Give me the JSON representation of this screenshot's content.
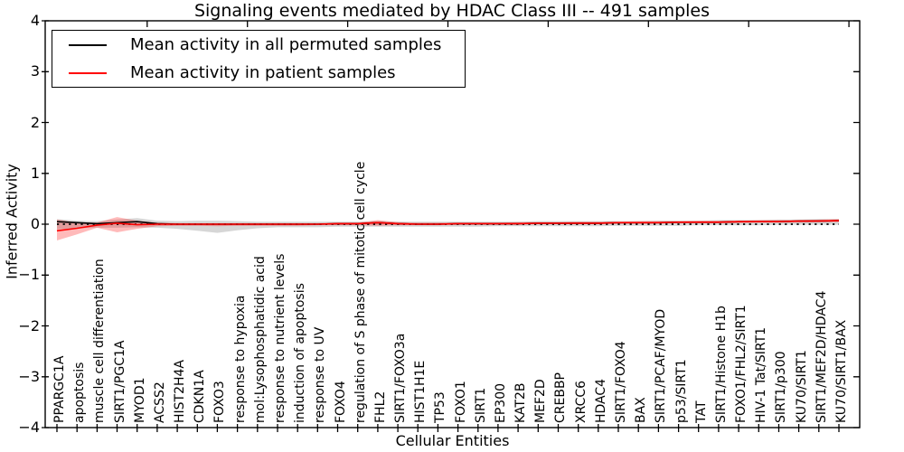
{
  "chart_data": {
    "type": "line",
    "title": "Signaling events mediated by HDAC Class III -- 491 samples",
    "xlabel": "Cellular Entities",
    "ylabel": "Inferred Activity",
    "ylim": [
      -4,
      4
    ],
    "ytick_labels": [
      "4",
      "3",
      "2",
      "1",
      "0",
      "−1",
      "−2",
      "−3",
      "−4"
    ],
    "ytick_values": [
      4,
      3,
      2,
      1,
      0,
      -1,
      -2,
      -3,
      -4
    ],
    "grid": false,
    "zero_reference_line": {
      "style": "dotted",
      "color": "#000000",
      "y": 0
    },
    "legend_position": "upper left",
    "categories": [
      "PPARGC1A",
      "apoptosis",
      "muscle cell differentiation",
      "SIRT1/PGC1A",
      "MYOD1",
      "ACSS2",
      "HIST2H4A",
      "CDKN1A",
      "FOXO3",
      "response to hypoxia",
      "mol:Lysophosphatidic acid",
      "response to nutrient levels",
      "induction of apoptosis",
      "response to UV",
      "FOXO4",
      "regulation of S phase of mitotic cell cycle",
      "FHL2",
      "SIRT1/FOXO3a",
      "HIST1H1E",
      "TP53",
      "FOXO1",
      "SIRT1",
      "EP300",
      "KAT2B",
      "MEF2D",
      "CREBBP",
      "XRCC6",
      "HDAC4",
      "SIRT1/FOXO4",
      "BAX",
      "SIRT1/PCAF/MYOD",
      "p53/SIRT1",
      "TAT",
      "SIRT1/Histone H1b",
      "FOXO1/FHL2/SIRT1",
      "HIV-1 Tat/SIRT1",
      "SIRT1/p300",
      "KU70/SIRT1",
      "SIRT1/MEF2D/HDAC4",
      "KU70/SIRT1/BAX"
    ],
    "series": [
      {
        "name": "Mean activity in all permuted samples",
        "color": "#000000",
        "band_color": "rgba(0,0,0,0.16)",
        "values": [
          0.05,
          0.03,
          0.01,
          0.03,
          0.05,
          0.01,
          0.0,
          0.0,
          0.0,
          0.0,
          0.0,
          0.0,
          0.0,
          0.0,
          0.01,
          0.01,
          0.03,
          0.01,
          0.0,
          0.0,
          0.01,
          0.01,
          0.01,
          0.01,
          0.02,
          0.02,
          0.02,
          0.02,
          0.03,
          0.03,
          0.03,
          0.04,
          0.04,
          0.04,
          0.05,
          0.05,
          0.05,
          0.06,
          0.06,
          0.07
        ],
        "band_upper": [
          0.1,
          0.07,
          0.06,
          0.09,
          0.12,
          0.07,
          0.06,
          0.07,
          0.07,
          0.06,
          0.05,
          0.05,
          0.05,
          0.05,
          0.05,
          0.05,
          0.06,
          0.05,
          0.05,
          0.05,
          0.05,
          0.05,
          0.05,
          0.05,
          0.06,
          0.06,
          0.06,
          0.06,
          0.06,
          0.06,
          0.07,
          0.07,
          0.07,
          0.08,
          0.08,
          0.08,
          0.09,
          0.09,
          0.1,
          0.1
        ],
        "band_lower": [
          -0.1,
          -0.08,
          -0.07,
          -0.07,
          -0.06,
          -0.07,
          -0.09,
          -0.13,
          -0.17,
          -0.12,
          -0.08,
          -0.06,
          -0.06,
          -0.06,
          -0.05,
          -0.05,
          -0.05,
          -0.05,
          -0.05,
          -0.05,
          -0.05,
          -0.05,
          -0.04,
          -0.04,
          -0.04,
          -0.04,
          -0.04,
          -0.04,
          -0.03,
          -0.03,
          -0.03,
          -0.03,
          -0.02,
          -0.02,
          -0.02,
          -0.02,
          -0.01,
          -0.01,
          -0.01,
          -0.01
        ]
      },
      {
        "name": "Mean activity in patient samples",
        "color": "#ff0000",
        "band_color": "rgba(255,0,0,0.27)",
        "values": [
          -0.13,
          -0.08,
          -0.02,
          0.02,
          -0.01,
          0.0,
          0.0,
          0.0,
          0.0,
          0.0,
          0.0,
          0.0,
          0.0,
          0.0,
          0.01,
          0.01,
          0.03,
          0.01,
          0.0,
          0.0,
          0.01,
          0.01,
          0.01,
          0.01,
          0.02,
          0.02,
          0.02,
          0.02,
          0.03,
          0.03,
          0.03,
          0.04,
          0.04,
          0.04,
          0.05,
          0.05,
          0.05,
          0.06,
          0.06,
          0.07
        ],
        "band_upper": [
          0.09,
          0.03,
          0.03,
          0.14,
          0.07,
          0.03,
          0.02,
          0.02,
          0.02,
          0.02,
          0.02,
          0.02,
          0.02,
          0.02,
          0.03,
          0.03,
          0.08,
          0.04,
          0.03,
          0.03,
          0.03,
          0.03,
          0.03,
          0.04,
          0.04,
          0.04,
          0.05,
          0.05,
          0.05,
          0.06,
          0.06,
          0.06,
          0.07,
          0.07,
          0.07,
          0.08,
          0.08,
          0.08,
          0.09,
          0.1
        ],
        "band_lower": [
          -0.32,
          -0.2,
          -0.07,
          -0.16,
          -0.09,
          -0.04,
          -0.03,
          -0.03,
          -0.04,
          -0.03,
          -0.03,
          -0.03,
          -0.03,
          -0.02,
          -0.02,
          -0.02,
          -0.03,
          -0.02,
          -0.02,
          -0.02,
          -0.01,
          -0.01,
          -0.01,
          -0.01,
          0.0,
          0.0,
          0.0,
          0.0,
          0.01,
          0.01,
          0.01,
          0.02,
          0.02,
          0.02,
          0.02,
          0.03,
          0.03,
          0.03,
          0.04,
          0.04
        ]
      }
    ]
  }
}
